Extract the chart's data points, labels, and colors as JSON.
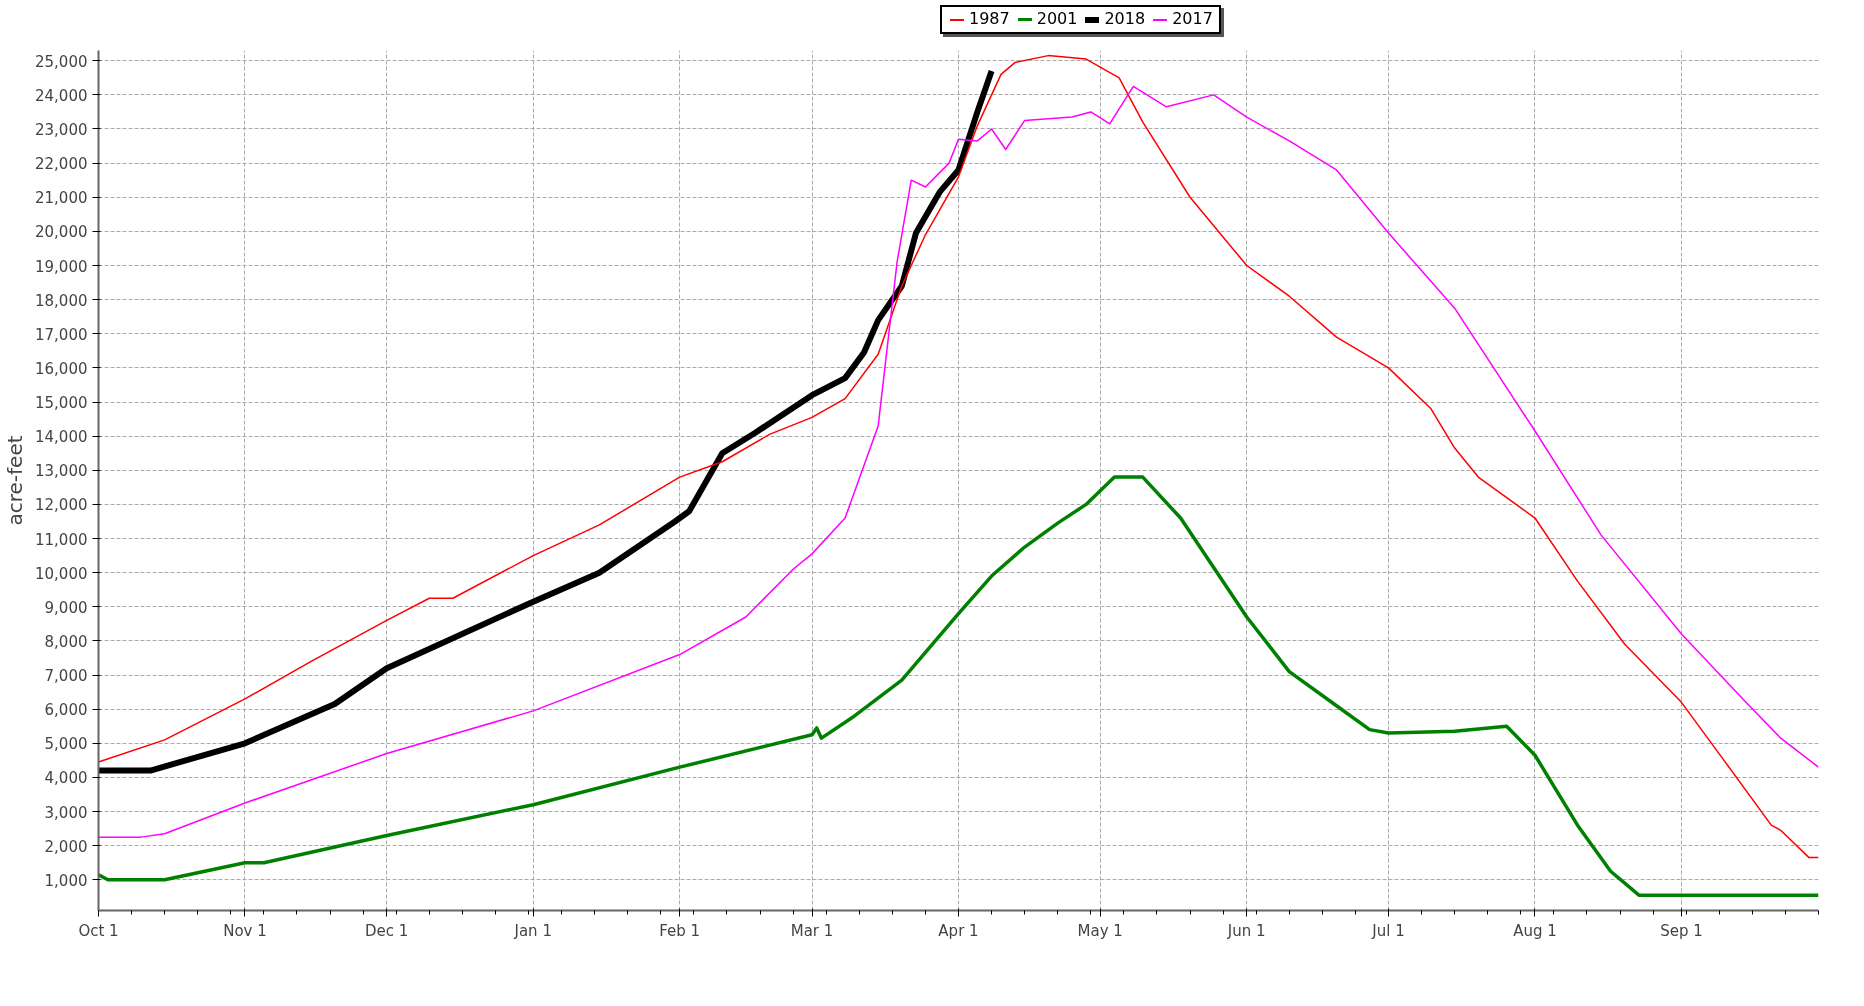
{
  "chart_data": {
    "type": "line",
    "ylabel": "acre-feet",
    "legend": "top",
    "grid": true,
    "line_style": "solid",
    "xlim": [
      "2000-10-01",
      "2001-09-30"
    ],
    "ylim": [
      100,
      25300
    ],
    "xticks": [
      {
        "value": "2000-10-01",
        "label": "Oct 1"
      },
      {
        "value": "2000-11-01",
        "label": "Nov 1"
      },
      {
        "value": "2000-12-01",
        "label": "Dec 1"
      },
      {
        "value": "2001-01-01",
        "label": "Jan 1"
      },
      {
        "value": "2001-02-01",
        "label": "Feb 1"
      },
      {
        "value": "2001-03-01",
        "label": "Mar 1"
      },
      {
        "value": "2001-04-01",
        "label": "Apr 1"
      },
      {
        "value": "2001-05-01",
        "label": "May 1"
      },
      {
        "value": "2001-06-01",
        "label": "Jun 1"
      },
      {
        "value": "2001-07-01",
        "label": "Jul 1"
      },
      {
        "value": "2001-08-01",
        "label": "Aug 1"
      },
      {
        "value": "2001-09-01",
        "label": "Sep 1"
      }
    ],
    "yticks": [
      {
        "value": 1000,
        "label": "1,000"
      },
      {
        "value": 2000,
        "label": "2,000"
      },
      {
        "value": 3000,
        "label": "3,000"
      },
      {
        "value": 4000,
        "label": "4,000"
      },
      {
        "value": 5000,
        "label": "5,000"
      },
      {
        "value": 6000,
        "label": "6,000"
      },
      {
        "value": 7000,
        "label": "7,000"
      },
      {
        "value": 8000,
        "label": "8,000"
      },
      {
        "value": 9000,
        "label": "9,000"
      },
      {
        "value": 10000,
        "label": "10,000"
      },
      {
        "value": 11000,
        "label": "11,000"
      },
      {
        "value": 12000,
        "label": "12,000"
      },
      {
        "value": 13000,
        "label": "13,000"
      },
      {
        "value": 14000,
        "label": "14,000"
      },
      {
        "value": 15000,
        "label": "15,000"
      },
      {
        "value": 16000,
        "label": "16,000"
      },
      {
        "value": 17000,
        "label": "17,000"
      },
      {
        "value": 18000,
        "label": "18,000"
      },
      {
        "value": 19000,
        "label": "19,000"
      },
      {
        "value": 20000,
        "label": "20,000"
      },
      {
        "value": 21000,
        "label": "21,000"
      },
      {
        "value": 22000,
        "label": "22,000"
      },
      {
        "value": 23000,
        "label": "23,000"
      },
      {
        "value": 24000,
        "label": "24,000"
      },
      {
        "value": 25000,
        "label": "25,000"
      }
    ],
    "series": [
      {
        "name": "1987",
        "color": "#ff0000",
        "x": [
          "2000-10-01",
          "2000-10-15",
          "2000-11-01",
          "2000-11-15",
          "2000-12-01",
          "2000-12-10",
          "2000-12-15",
          "2001-01-01",
          "2001-01-15",
          "2001-02-01",
          "2001-02-10",
          "2001-02-20",
          "2001-03-01",
          "2001-03-08",
          "2001-03-15",
          "2001-03-20",
          "2001-03-25",
          "2001-04-01",
          "2001-04-05",
          "2001-04-10",
          "2001-04-13",
          "2001-04-20",
          "2001-04-28",
          "2001-05-05",
          "2001-05-10",
          "2001-05-20",
          "2001-06-01",
          "2001-06-10",
          "2001-06-20",
          "2001-07-01",
          "2001-07-10",
          "2001-07-15",
          "2001-07-20",
          "2001-08-01",
          "2001-08-10",
          "2001-08-20",
          "2001-09-01",
          "2001-09-10",
          "2001-09-20",
          "2001-09-22",
          "2001-09-28",
          "2001-09-30"
        ],
        "values": [
          4450,
          5100,
          6300,
          7400,
          8600,
          9250,
          9250,
          10500,
          11400,
          12800,
          13250,
          14050,
          14550,
          15100,
          16400,
          18400,
          19900,
          21600,
          23100,
          24600,
          24950,
          25150,
          25050,
          24500,
          23200,
          21000,
          19000,
          18100,
          16900,
          16000,
          14800,
          13650,
          12800,
          11600,
          9750,
          7900,
          6200,
          4500,
          2600,
          2450,
          1650,
          1650
        ]
      },
      {
        "name": "2001",
        "color": "#008000",
        "x": [
          "2000-10-01",
          "2000-10-03",
          "2000-10-15",
          "2000-11-01",
          "2000-11-05",
          "2000-12-01",
          "2001-01-01",
          "2001-02-01",
          "2001-03-01",
          "2001-03-02",
          "2001-03-03",
          "2001-03-10",
          "2001-03-20",
          "2001-04-01",
          "2001-04-08",
          "2001-04-15",
          "2001-04-22",
          "2001-04-28",
          "2001-05-04",
          "2001-05-10",
          "2001-05-18",
          "2001-06-01",
          "2001-06-10",
          "2001-06-20",
          "2001-06-27",
          "2001-07-01",
          "2001-07-15",
          "2001-07-26",
          "2001-08-01",
          "2001-08-10",
          "2001-08-17",
          "2001-08-23",
          "2001-09-30"
        ],
        "values": [
          1150,
          1000,
          1000,
          1500,
          1500,
          2300,
          3200,
          4300,
          5250,
          5450,
          5150,
          5800,
          6850,
          8800,
          9900,
          10750,
          11450,
          12000,
          12800,
          12800,
          11600,
          8700,
          7100,
          6100,
          5400,
          5300,
          5350,
          5500,
          4650,
          2600,
          1250,
          550,
          550
        ]
      },
      {
        "name": "2018",
        "color": "#000000",
        "x": [
          "2000-10-01",
          "2000-10-12",
          "2000-11-01",
          "2000-11-20",
          "2000-12-01",
          "2001-01-01",
          "2001-01-15",
          "2001-01-31",
          "2001-02-03",
          "2001-02-10",
          "2001-02-17",
          "2001-03-01",
          "2001-03-08",
          "2001-03-12",
          "2001-03-15",
          "2001-03-20",
          "2001-03-23",
          "2001-03-28",
          "2001-04-01",
          "2001-04-05",
          "2001-04-08"
        ],
        "values": [
          4200,
          4200,
          5000,
          6150,
          7200,
          9150,
          10000,
          11500,
          11800,
          13500,
          14100,
          15200,
          15700,
          16450,
          17400,
          18400,
          19950,
          21150,
          21800,
          23500,
          24700
        ]
      },
      {
        "name": "2017",
        "color": "#ff00ff",
        "x": [
          "2000-10-01",
          "2000-10-10",
          "2000-10-15",
          "2000-11-01",
          "2000-12-01",
          "2001-01-01",
          "2001-02-01",
          "2001-02-15",
          "2001-02-25",
          "2001-03-01",
          "2001-03-08",
          "2001-03-15",
          "2001-03-19",
          "2001-03-22",
          "2001-03-25",
          "2001-03-30",
          "2001-04-01",
          "2001-04-05",
          "2001-04-08",
          "2001-04-11",
          "2001-04-15",
          "2001-04-25",
          "2001-04-29",
          "2001-05-03",
          "2001-05-08",
          "2001-05-15",
          "2001-05-25",
          "2001-06-01",
          "2001-06-10",
          "2001-06-20",
          "2001-07-01",
          "2001-07-15",
          "2001-08-01",
          "2001-08-15",
          "2001-09-01",
          "2001-09-15",
          "2001-09-22",
          "2001-09-30"
        ],
        "values": [
          2250,
          2250,
          2350,
          3250,
          4700,
          5950,
          7600,
          8700,
          10100,
          10550,
          11600,
          14300,
          19100,
          21500,
          21300,
          22000,
          22700,
          22650,
          23000,
          22400,
          23250,
          23350,
          23500,
          23150,
          24250,
          23650,
          24000,
          23350,
          22650,
          21800,
          19950,
          17750,
          14150,
          11100,
          8200,
          6150,
          5150,
          4300
        ]
      }
    ]
  }
}
